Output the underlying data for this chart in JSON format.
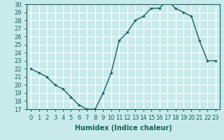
{
  "x": [
    0,
    1,
    2,
    3,
    4,
    5,
    6,
    7,
    8,
    9,
    10,
    11,
    12,
    13,
    14,
    15,
    16,
    17,
    18,
    19,
    20,
    21,
    22,
    23
  ],
  "y": [
    22.0,
    21.5,
    21.0,
    20.0,
    19.5,
    18.5,
    17.5,
    17.0,
    17.0,
    19.0,
    21.5,
    25.5,
    26.5,
    28.0,
    28.5,
    29.5,
    29.5,
    30.5,
    29.5,
    29.0,
    28.5,
    25.5,
    23.0,
    23.0
  ],
  "xlabel": "Humidex (Indice chaleur)",
  "ylim": [
    17,
    30
  ],
  "xlim_min": -0.5,
  "xlim_max": 23.5,
  "yticks": [
    17,
    18,
    19,
    20,
    21,
    22,
    23,
    24,
    25,
    26,
    27,
    28,
    29,
    30
  ],
  "xticks": [
    0,
    1,
    2,
    3,
    4,
    5,
    6,
    7,
    8,
    9,
    10,
    11,
    12,
    13,
    14,
    15,
    16,
    17,
    18,
    19,
    20,
    21,
    22,
    23
  ],
  "line_color": "#1a6060",
  "bg_color": "#c8eaea",
  "grid_color": "#ffffff",
  "font_color": "#1a6060",
  "xlabel_fontsize": 7,
  "tick_fontsize": 6,
  "linewidth": 1.0,
  "markersize": 3.5
}
